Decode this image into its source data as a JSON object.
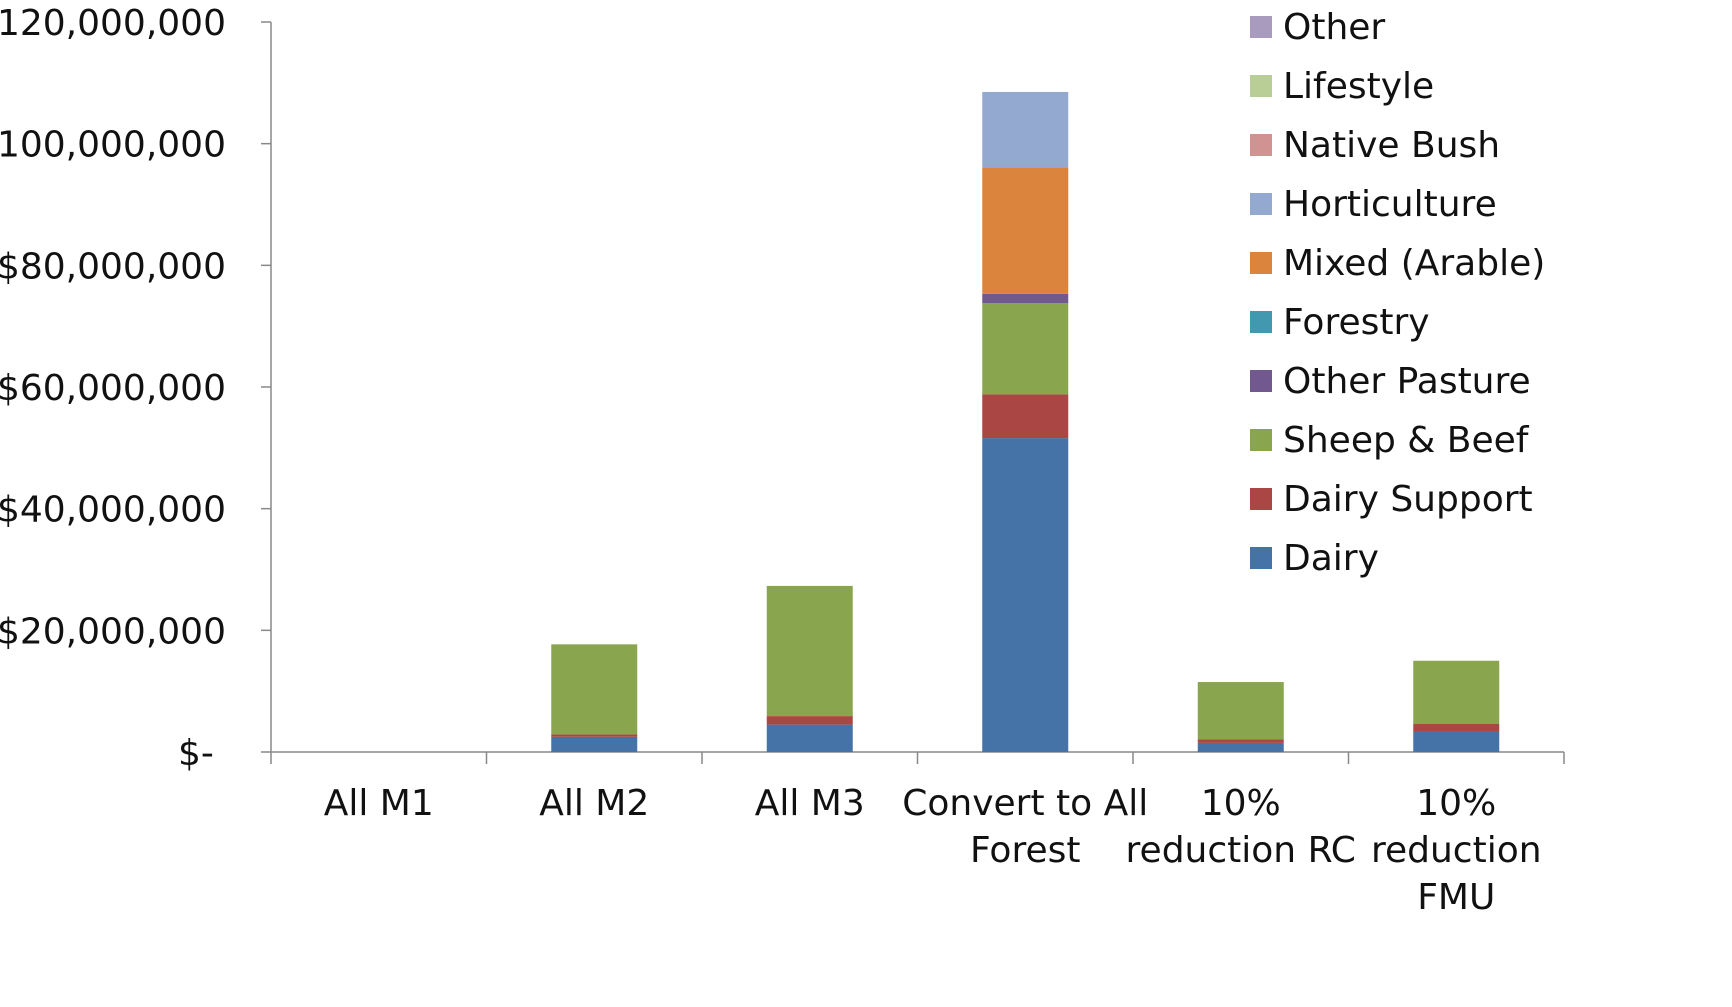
{
  "chart_data": {
    "type": "bar",
    "stacked": true,
    "categories": [
      [
        "All M1"
      ],
      [
        "All M2"
      ],
      [
        "All M3"
      ],
      [
        "Convert to All",
        "Forest"
      ],
      [
        "10%",
        "reduction RC"
      ],
      [
        "10%",
        "reduction",
        "FMU"
      ]
    ],
    "series": [
      {
        "name": "Dairy",
        "color": "#4572A7",
        "values": [
          0,
          2500000,
          4500000,
          51600000,
          1500000,
          3300000
        ]
      },
      {
        "name": "Dairy Support",
        "color": "#AA4643",
        "values": [
          0,
          400000,
          1400000,
          7200000,
          600000,
          1300000
        ]
      },
      {
        "name": "Sheep & Beef",
        "color": "#89A54E",
        "values": [
          0,
          14800000,
          21400000,
          15000000,
          9400000,
          10400000
        ]
      },
      {
        "name": "Other Pasture",
        "color": "#71588F",
        "values": [
          0,
          0,
          0,
          1500000,
          0,
          0
        ]
      },
      {
        "name": "Forestry",
        "color": "#4198AF",
        "values": [
          0,
          0,
          0,
          0,
          0,
          0
        ]
      },
      {
        "name": "Mixed (Arable)",
        "color": "#DB843D",
        "values": [
          0,
          0,
          0,
          20800000,
          0,
          0
        ]
      },
      {
        "name": "Horticulture",
        "color": "#93A9CF",
        "values": [
          0,
          0,
          0,
          12400000,
          0,
          0
        ]
      },
      {
        "name": "Native Bush",
        "color": "#D19392",
        "values": [
          0,
          0,
          0,
          0,
          0,
          0
        ]
      },
      {
        "name": "Lifestyle",
        "color": "#B9CD96",
        "values": [
          0,
          0,
          0,
          0,
          0,
          0
        ]
      },
      {
        "name": "Other",
        "color": "#A99BBD",
        "values": [
          0,
          0,
          0,
          0,
          0,
          0
        ]
      }
    ],
    "ylim": [
      0,
      120000000
    ],
    "yticks": [
      0,
      20000000,
      40000000,
      60000000,
      80000000,
      100000000,
      120000000
    ],
    "ytick_labels": [
      "$-",
      "$20,000,000",
      "$40,000,000",
      "$60,000,000",
      "$80,000,000",
      "$100,000,000",
      "$120,000,000"
    ],
    "legend_order": [
      "Other",
      "Lifestyle",
      "Native Bush",
      "Horticulture",
      "Mixed (Arable)",
      "Forestry",
      "Other Pasture",
      "Sheep & Beef",
      "Dairy Support",
      "Dairy"
    ],
    "legend_position": "top-right",
    "grid": false,
    "title": "",
    "xlabel": "",
    "ylabel": ""
  }
}
